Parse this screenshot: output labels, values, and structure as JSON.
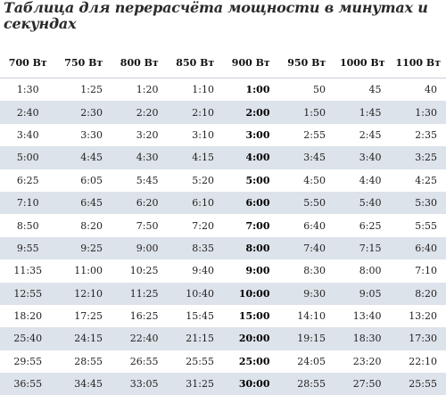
{
  "title": "Таблица для перерасчёта мощности в минутах и секундах",
  "table": {
    "headers": [
      "700 Вт",
      "750 Вт",
      "800 Вт",
      "850 Вт",
      "900 Вт",
      "950 Вт",
      "1000 Вт",
      "1100 Вт"
    ],
    "rows": [
      [
        "1:30",
        "1:25",
        "1:20",
        "1:10",
        "1:00",
        "50",
        "45",
        "40"
      ],
      [
        "2:40",
        "2:30",
        "2:20",
        "2:10",
        "2:00",
        "1:50",
        "1:45",
        "1:30"
      ],
      [
        "3:40",
        "3:30",
        "3:20",
        "3:10",
        "3:00",
        "2:55",
        "2:45",
        "2:35"
      ],
      [
        "5:00",
        "4:45",
        "4:30",
        "4:15",
        "4:00",
        "3:45",
        "3:40",
        "3:25"
      ],
      [
        "6:25",
        "6:05",
        "5:45",
        "5:20",
        "5:00",
        "4:50",
        "4:40",
        "4:25"
      ],
      [
        "7:10",
        "6:45",
        "6:20",
        "6:10",
        "6:00",
        "5:50",
        "5:40",
        "5:30"
      ],
      [
        "8:50",
        "8:20",
        "7:50",
        "7:20",
        "7:00",
        "6:40",
        "6:25",
        "5:55"
      ],
      [
        "9:55",
        "9:25",
        "9:00",
        "8:35",
        "8:00",
        "7:40",
        "7:15",
        "6:40"
      ],
      [
        "11:35",
        "11:00",
        "10:25",
        "9:40",
        "9:00",
        "8:30",
        "8:00",
        "7:10"
      ],
      [
        "12:55",
        "12:10",
        "11:25",
        "10:40",
        "10:00",
        "9:30",
        "9:05",
        "8:20"
      ],
      [
        "18:20",
        "17:25",
        "16:25",
        "15:45",
        "15:00",
        "14:10",
        "13:40",
        "13:20"
      ],
      [
        "25:40",
        "24:15",
        "22:40",
        "21:15",
        "20:00",
        "19:15",
        "18:30",
        "17:30"
      ],
      [
        "29:55",
        "28:55",
        "26:55",
        "25:55",
        "25:00",
        "24:05",
        "23:20",
        "22:10"
      ],
      [
        "36:55",
        "34:45",
        "33:05",
        "31:25",
        "30:00",
        "28:55",
        "27:50",
        "25:55"
      ]
    ]
  },
  "colors": {
    "stripe": "#dde3ea",
    "text": "#1a1a1a"
  }
}
